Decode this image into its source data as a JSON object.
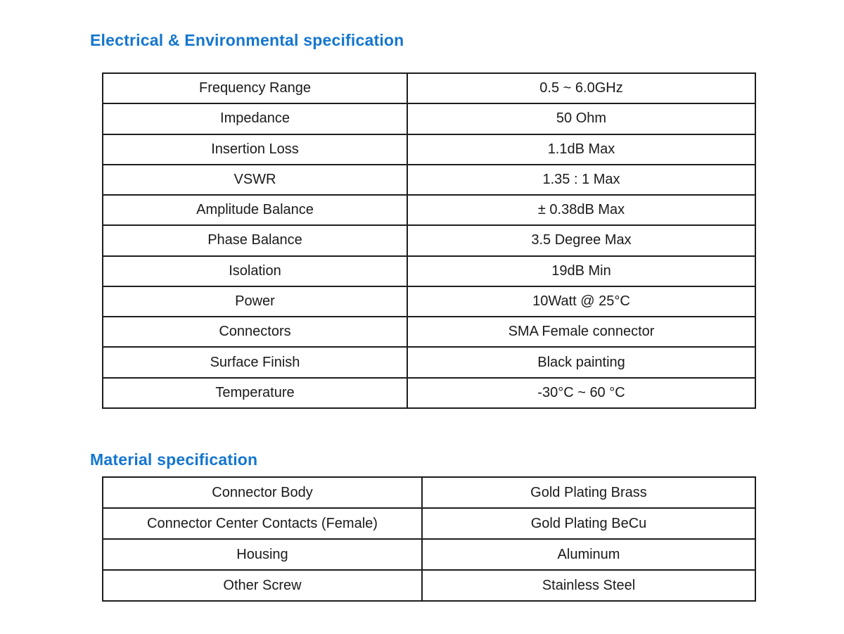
{
  "page": {
    "background_color": "#ffffff",
    "accent_color": "#1476cf",
    "table_border_color": "#1e1e1e",
    "text_color": "#1a1a1a"
  },
  "electrical_section": {
    "title": "Electrical & Environmental specification",
    "rows": [
      {
        "label": "Frequency Range",
        "value": "0.5 ~ 6.0GHz"
      },
      {
        "label": "Impedance",
        "value": "50 Ohm"
      },
      {
        "label": "Insertion Loss",
        "value": "1.1dB Max"
      },
      {
        "label": "VSWR",
        "value": "1.35 : 1 Max"
      },
      {
        "label": "Amplitude Balance",
        "value": "± 0.38dB Max"
      },
      {
        "label": "Phase Balance",
        "value": "3.5 Degree Max"
      },
      {
        "label": "Isolation",
        "value": "19dB Min"
      },
      {
        "label": "Power",
        "value": "10Watt @ 25°C"
      },
      {
        "label": "Connectors",
        "value": "SMA Female connector"
      },
      {
        "label": "Surface Finish",
        "value": "Black painting"
      },
      {
        "label": "Temperature",
        "value": "-30°C ~ 60 °C"
      }
    ]
  },
  "material_section": {
    "title": "Material specification",
    "rows": [
      {
        "label": "Connector Body",
        "value": "Gold Plating Brass"
      },
      {
        "label": "Connector Center Contacts (Female)",
        "value": "Gold Plating BeCu"
      },
      {
        "label": "Housing",
        "value": "Aluminum"
      },
      {
        "label": "Other Screw",
        "value": "Stainless Steel"
      }
    ]
  }
}
